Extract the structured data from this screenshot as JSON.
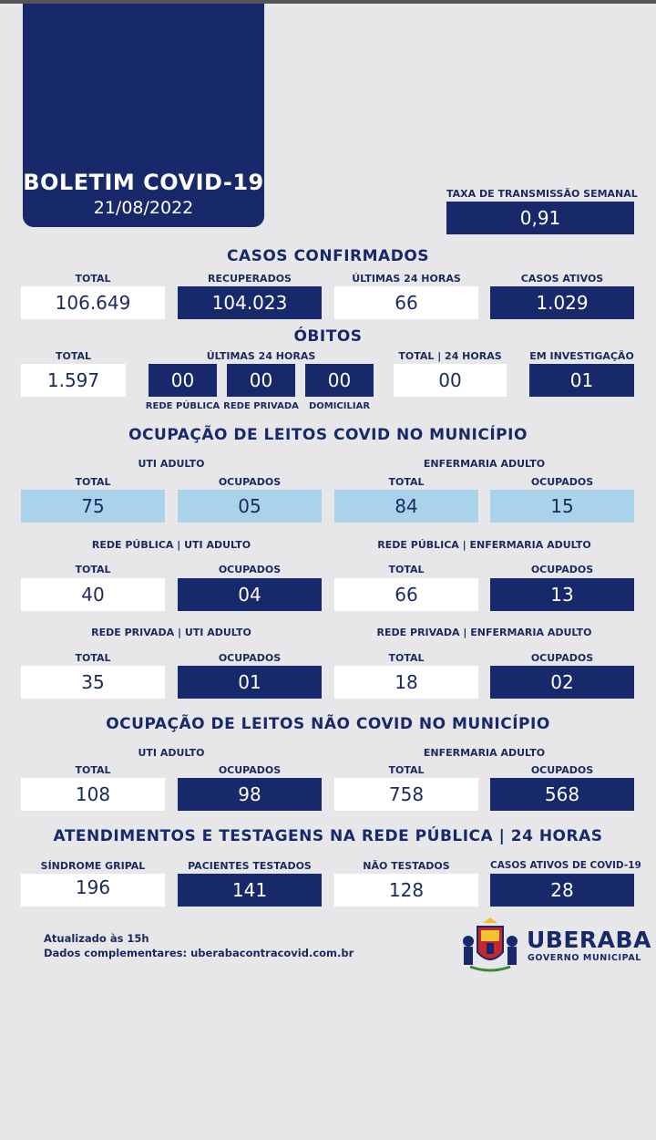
{
  "header": {
    "title": "BOLETIM COVID-19",
    "date": "21/08/2022"
  },
  "taxa": {
    "label": "TAXA DE TRANSMISSÃO SEMANAL",
    "value": "0,91"
  },
  "casos": {
    "title": "CASOS CONFIRMADOS",
    "total_label": "TOTAL",
    "total": "106.649",
    "recuperados_label": "RECUPERADOS",
    "recuperados": "104.023",
    "ultimas_label": "ÚLTIMAS 24 HORAS",
    "ultimas": "66",
    "ativos_label": "CASOS ATIVOS",
    "ativos": "1.029"
  },
  "obitos": {
    "title": "ÓBITOS",
    "total_label": "TOTAL",
    "total": "1.597",
    "ultimas_label": "ÚLTIMAS 24 HORAS",
    "publica_value": "00",
    "publica_label": "REDE PÚBLICA",
    "privada_value": "00",
    "privada_label": "REDE PRIVADA",
    "domiciliar_value": "00",
    "domiciliar_label": "DOMICILIAR",
    "total24_label": "TOTAL | 24 HORAS",
    "total24": "00",
    "investigacao_label": "EM INVESTIGAÇÃO",
    "investigacao": "01"
  },
  "leitos_covid": {
    "title": "OCUPAÇÃO DE LEITOS COVID NO MUNICÍPIO",
    "uti_label": "UTI ADULTO",
    "enf_label": "ENFERMARIA ADULTO",
    "total_label": "TOTAL",
    "ocupados_label": "OCUPADOS",
    "uti_total": "75",
    "uti_ocupados": "05",
    "enf_total": "84",
    "enf_ocupados": "15",
    "pub_uti_label": "REDE PÚBLICA | UTI ADULTO",
    "pub_enf_label": "REDE PÚBLICA | ENFERMARIA ADULTO",
    "pub_uti_total": "40",
    "pub_uti_ocupados": "04",
    "pub_enf_total": "66",
    "pub_enf_ocupados": "13",
    "priv_uti_label": "REDE PRIVADA | UTI ADULTO",
    "priv_enf_label": "REDE PRIVADA | ENFERMARIA ADULTO",
    "priv_uti_total": "35",
    "priv_uti_ocupados": "01",
    "priv_enf_total": "18",
    "priv_enf_ocupados": "02"
  },
  "leitos_nao_covid": {
    "title": "OCUPAÇÃO DE LEITOS NÃO COVID NO MUNICÍPIO",
    "uti_label": "UTI ADULTO",
    "enf_label": "ENFERMARIA ADULTO",
    "total_label": "TOTAL",
    "ocupados_label": "OCUPADOS",
    "uti_total": "108",
    "uti_ocupados": "98",
    "enf_total": "758",
    "enf_ocupados": "568"
  },
  "atendimentos": {
    "title": "ATENDIMENTOS E TESTAGENS NA REDE PÚBLICA | 24 HORAS",
    "sindrome_label": "SÍNDROME GRIPAL",
    "sindrome": "196",
    "testados_label": "PACIENTES TESTADOS",
    "testados": "141",
    "nao_testados_label": "NÃO TESTADOS",
    "nao_testados": "128",
    "ativos_label": "CASOS ATIVOS DE COVID-19",
    "ativos": "28"
  },
  "footer": {
    "updated": "Atualizado às 15h",
    "more": "Dados complementares: uberabacontracovid.com.br"
  },
  "logo": {
    "name": "UBERABA",
    "sub": "GOVERNO MUNICIPAL"
  },
  "colors": {
    "navy": "#17296b",
    "light_blue": "#a9d3ea",
    "background": "#e7e7e9"
  }
}
